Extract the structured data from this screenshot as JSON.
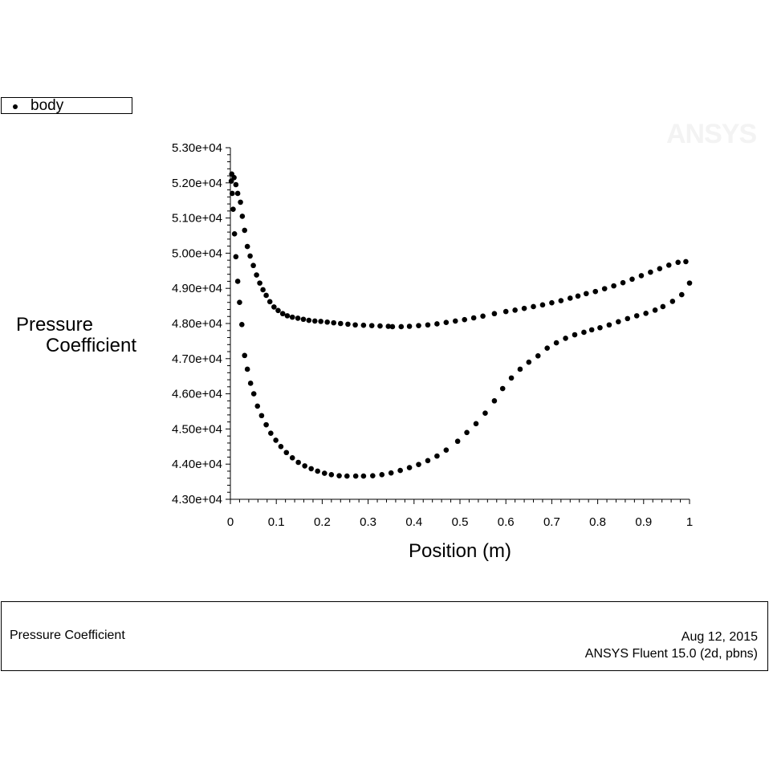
{
  "legend": {
    "items": [
      {
        "label": "body"
      }
    ]
  },
  "watermark": "ANSYS",
  "footer": {
    "left_title": "Pressure Coefficient",
    "date": "Aug 12, 2015",
    "software": "ANSYS Fluent 15.0 (2d, pbns)"
  },
  "chart_data": {
    "type": "scatter",
    "title": "",
    "xlabel": "Position (m)",
    "ylabel_lines": [
      "Pressure",
      "Coefficient"
    ],
    "xlim": [
      0,
      1
    ],
    "ylim": [
      43000,
      53000
    ],
    "grid": false,
    "legend_position": "top-left",
    "x_ticks": [
      "0",
      "0.1",
      "0.2",
      "0.3",
      "0.4",
      "0.5",
      "0.6",
      "0.7",
      "0.8",
      "0.9",
      "1"
    ],
    "y_ticks": [
      "4.30e+04",
      "4.40e+04",
      "4.50e+04",
      "4.60e+04",
      "4.70e+04",
      "4.80e+04",
      "4.90e+04",
      "5.00e+04",
      "5.10e+04",
      "5.20e+04",
      "5.30e+04"
    ],
    "series": [
      {
        "name": "body",
        "part": "upper",
        "x": [
          0.003,
          0.008,
          0.012,
          0.016,
          0.022,
          0.026,
          0.031,
          0.037,
          0.043,
          0.05,
          0.057,
          0.064,
          0.071,
          0.078,
          0.086,
          0.095,
          0.104,
          0.114,
          0.124,
          0.135,
          0.147,
          0.159,
          0.171,
          0.184,
          0.197,
          0.211,
          0.225,
          0.24,
          0.256,
          0.272,
          0.29,
          0.308,
          0.326,
          0.344,
          0.353,
          0.372,
          0.39,
          0.41,
          0.43,
          0.45,
          0.47,
          0.49,
          0.51,
          0.53,
          0.55,
          0.575,
          0.6,
          0.62,
          0.64,
          0.66,
          0.68,
          0.7,
          0.72,
          0.74,
          0.757,
          0.775,
          0.795,
          0.815,
          0.835,
          0.855,
          0.875,
          0.895,
          0.915,
          0.935,
          0.955,
          0.975,
          0.992
        ],
        "y": [
          52250,
          52150,
          51950,
          51700,
          51450,
          51050,
          50650,
          50190,
          49920,
          49650,
          49380,
          49150,
          48960,
          48800,
          48620,
          48470,
          48370,
          48280,
          48220,
          48180,
          48150,
          48120,
          48090,
          48070,
          48060,
          48040,
          48020,
          48000,
          47980,
          47960,
          47950,
          47940,
          47930,
          47920,
          47910,
          47910,
          47920,
          47940,
          47960,
          47990,
          48030,
          48070,
          48110,
          48160,
          48210,
          48280,
          48340,
          48380,
          48430,
          48480,
          48530,
          48590,
          48650,
          48720,
          48780,
          48850,
          48910,
          48990,
          49070,
          49160,
          49260,
          49360,
          49460,
          49560,
          49660,
          49740,
          49760
        ]
      },
      {
        "name": "body",
        "part": "lower",
        "x": [
          0.002,
          0.004,
          0.006,
          0.009,
          0.012,
          0.016,
          0.02,
          0.025,
          0.031,
          0.037,
          0.044,
          0.051,
          0.059,
          0.068,
          0.078,
          0.088,
          0.099,
          0.11,
          0.122,
          0.135,
          0.148,
          0.162,
          0.176,
          0.19,
          0.205,
          0.22,
          0.237,
          0.254,
          0.273,
          0.29,
          0.31,
          0.33,
          0.35,
          0.37,
          0.39,
          0.41,
          0.43,
          0.45,
          0.47,
          0.495,
          0.515,
          0.535,
          0.555,
          0.575,
          0.593,
          0.612,
          0.631,
          0.65,
          0.67,
          0.69,
          0.71,
          0.73,
          0.75,
          0.77,
          0.787,
          0.805,
          0.825,
          0.845,
          0.865,
          0.885,
          0.905,
          0.925,
          0.942,
          0.963,
          0.983,
          1.0
        ],
        "y": [
          52050,
          51700,
          51250,
          50550,
          49900,
          49200,
          48600,
          47970,
          47090,
          46700,
          46300,
          46000,
          45650,
          45380,
          45120,
          44880,
          44680,
          44500,
          44330,
          44180,
          44050,
          43950,
          43870,
          43800,
          43740,
          43700,
          43670,
          43660,
          43660,
          43660,
          43670,
          43700,
          43750,
          43820,
          43900,
          43990,
          44100,
          44230,
          44400,
          44650,
          44900,
          45150,
          45450,
          45800,
          46150,
          46450,
          46700,
          46900,
          47080,
          47300,
          47450,
          47580,
          47680,
          47750,
          47820,
          47880,
          47960,
          48050,
          48140,
          48220,
          48290,
          48380,
          48480,
          48630,
          48820,
          49150
        ]
      }
    ]
  }
}
